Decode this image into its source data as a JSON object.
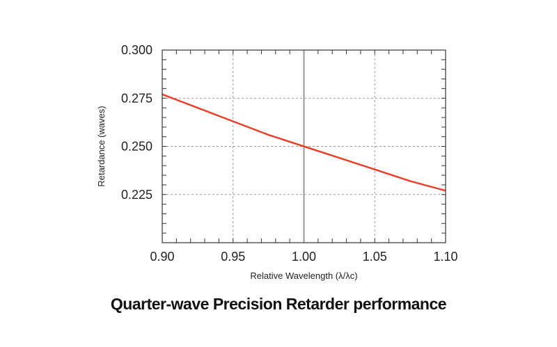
{
  "chart_data": {
    "type": "line",
    "title": "Quarter-wave Precision Retarder performance",
    "xlabel": "Relative Wavelength (λ/λc)",
    "ylabel": "Retardance (waves)",
    "xlim": [
      0.9,
      1.1
    ],
    "ylim": [
      0.2,
      0.3
    ],
    "x_ticks": [
      "0.90",
      "0.95",
      "1.00",
      "1.05",
      "1.10"
    ],
    "y_ticks": [
      "0.225",
      "0.250",
      "0.275",
      "0.300"
    ],
    "grid": true,
    "series": [
      {
        "name": "Retardance",
        "color": "#e8402a",
        "x": [
          0.9,
          0.925,
          0.95,
          0.975,
          1.0,
          1.025,
          1.05,
          1.075,
          1.1
        ],
        "y": [
          0.277,
          0.27,
          0.263,
          0.256,
          0.25,
          0.244,
          0.238,
          0.232,
          0.227
        ]
      }
    ],
    "reference_line_x": 1.0
  }
}
